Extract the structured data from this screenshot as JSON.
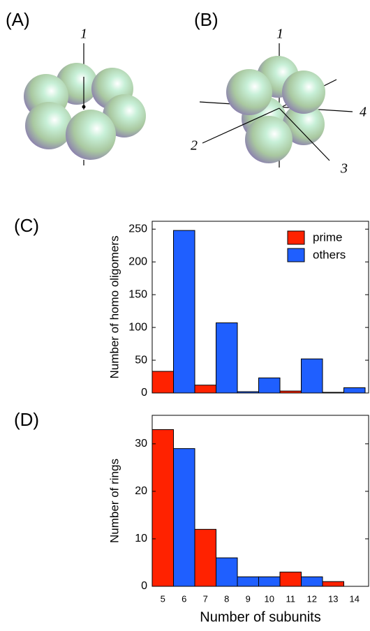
{
  "panels": [
    {
      "label": "(A)",
      "axes": [
        "1"
      ]
    },
    {
      "label": "(B)",
      "axes": [
        "1",
        "2",
        "3",
        "4"
      ]
    }
  ],
  "chart_data": [
    {
      "type": "bar",
      "panel_label": "(C)",
      "ylabel": "Number of homo oligomers",
      "series": [
        {
          "name": "prime",
          "color": "#ff2200",
          "values": [
            33,
            null,
            12,
            null,
            null,
            null,
            3,
            null,
            1,
            null
          ]
        },
        {
          "name": "others",
          "color": "#1f5fff",
          "values": [
            null,
            248,
            null,
            107,
            2,
            23,
            null,
            52,
            null,
            8
          ]
        }
      ],
      "ylim": [
        0,
        262
      ],
      "yticks": [
        0,
        50,
        100,
        150,
        200,
        250
      ],
      "legend": "upper right"
    },
    {
      "type": "bar",
      "panel_label": "(D)",
      "ylabel": "Number of rings",
      "xlabel": "Number of subunits",
      "categories": [
        "5",
        "6",
        "7",
        "8",
        "9",
        "10",
        "11",
        "12",
        "13",
        "14"
      ],
      "series": [
        {
          "color": "#ff2200",
          "values": [
            33,
            null,
            12,
            null,
            null,
            null,
            3,
            null,
            1,
            null
          ]
        },
        {
          "color": "#1f5fff",
          "values": [
            null,
            29,
            null,
            6,
            2,
            2,
            null,
            2,
            null,
            null
          ]
        }
      ],
      "ylim": [
        0,
        36
      ],
      "yticks": [
        0,
        10,
        20,
        30
      ]
    }
  ]
}
